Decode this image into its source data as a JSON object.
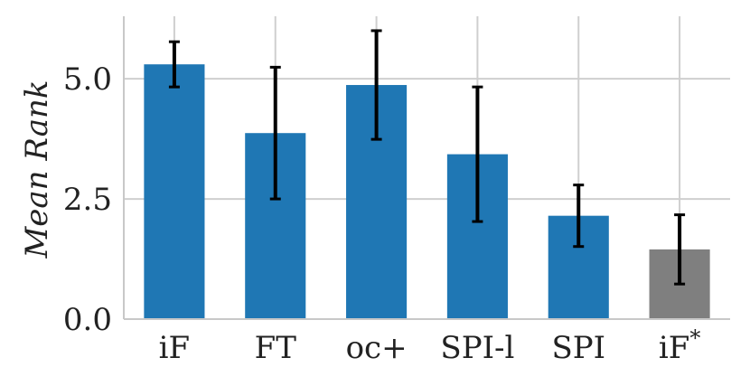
{
  "chart_data": {
    "type": "bar",
    "title": "",
    "xlabel": "",
    "ylabel": "Mean Rank",
    "ylim": [
      0,
      6.3
    ],
    "yticks": [
      0.0,
      2.5,
      5.0
    ],
    "ytick_labels": [
      "0.0",
      "2.5",
      "5.0"
    ],
    "grid": true,
    "categories": [
      "iF",
      "FT",
      "oc+",
      "SPI-l",
      "SPI",
      "iF*"
    ],
    "category_display": [
      {
        "main": "iF",
        "sup": ""
      },
      {
        "main": "FT",
        "sup": ""
      },
      {
        "main": "oc+",
        "sup": ""
      },
      {
        "main": "SPI-l",
        "sup": ""
      },
      {
        "main": "SPI",
        "sup": ""
      },
      {
        "main": "iF",
        "sup": "*"
      }
    ],
    "values": [
      5.3,
      3.87,
      4.87,
      3.43,
      2.15,
      1.45
    ],
    "error": [
      0.47,
      1.37,
      1.13,
      1.4,
      0.64,
      0.72
    ],
    "colors": [
      "#1f77b4",
      "#1f77b4",
      "#1f77b4",
      "#1f77b4",
      "#1f77b4",
      "#7f7f7f"
    ]
  }
}
